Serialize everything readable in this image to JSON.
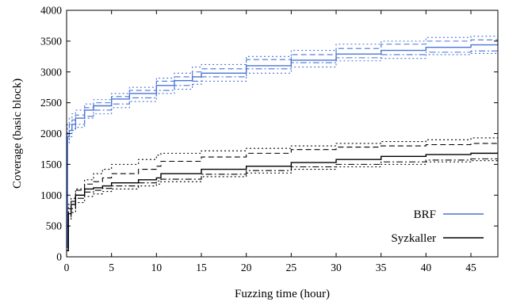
{
  "chart_data": {
    "type": "line",
    "title": "",
    "xlabel": "Fuzzing time (hour)",
    "ylabel": "Coverage (basic block)",
    "xlim": [
      0,
      48
    ],
    "ylim": [
      0,
      4000
    ],
    "xticks": [
      0,
      5,
      10,
      15,
      20,
      25,
      30,
      35,
      40,
      45
    ],
    "yticks": [
      0,
      500,
      1000,
      1500,
      2000,
      2500,
      3000,
      3500,
      4000
    ],
    "grid": false,
    "legend_position": "bottom-right",
    "series": [
      {
        "name": "BRF",
        "color": "#4a74d6",
        "style": "solid",
        "x": [
          0,
          0.1,
          0.3,
          0.6,
          1,
          2,
          3,
          5,
          7,
          10,
          12,
          14,
          15,
          20,
          25,
          30,
          35,
          40,
          45,
          48
        ],
        "y": [
          150,
          1950,
          2050,
          2150,
          2250,
          2380,
          2450,
          2560,
          2650,
          2780,
          2860,
          2920,
          2980,
          3100,
          3190,
          3290,
          3350,
          3400,
          3440,
          3460
        ]
      },
      {
        "name": "",
        "color": "#4a74d6",
        "style": "dashed",
        "x": [
          0,
          0.1,
          0.3,
          0.6,
          1,
          2,
          3,
          5,
          7,
          10,
          12,
          14,
          15,
          20,
          25,
          30,
          35,
          40,
          45,
          48
        ],
        "y": [
          150,
          2000,
          2150,
          2220,
          2300,
          2420,
          2500,
          2600,
          2700,
          2850,
          2920,
          3000,
          3050,
          3200,
          3280,
          3380,
          3450,
          3500,
          3520,
          3540
        ]
      },
      {
        "name": "",
        "color": "#4a74d6",
        "style": "dashdot",
        "x": [
          0,
          0.1,
          0.3,
          0.6,
          1,
          2,
          3,
          5,
          7,
          10,
          12,
          14,
          15,
          20,
          25,
          30,
          35,
          40,
          45,
          48
        ],
        "y": [
          150,
          1900,
          2000,
          2080,
          2150,
          2280,
          2380,
          2480,
          2580,
          2700,
          2780,
          2850,
          2920,
          3050,
          3150,
          3230,
          3280,
          3320,
          3340,
          3330
        ]
      },
      {
        "name": "",
        "color": "#4a74d6",
        "style": "dotted",
        "x": [
          0,
          0.1,
          0.3,
          0.6,
          1,
          2,
          3,
          5,
          7,
          10,
          12,
          14,
          15,
          20,
          25,
          30,
          35,
          40,
          45,
          48
        ],
        "y": [
          150,
          2150,
          2250,
          2320,
          2380,
          2480,
          2550,
          2650,
          2750,
          2900,
          2980,
          3080,
          3120,
          3250,
          3350,
          3450,
          3500,
          3560,
          3580,
          3590
        ]
      },
      {
        "name": "",
        "color": "#4a74d6",
        "style": "dotted",
        "x": [
          0,
          0.1,
          0.3,
          0.6,
          1,
          2,
          3,
          5,
          7,
          10,
          12,
          14,
          15,
          20,
          25,
          30,
          35,
          40,
          45,
          48
        ],
        "y": [
          150,
          1850,
          1950,
          2050,
          2100,
          2250,
          2320,
          2420,
          2520,
          2650,
          2720,
          2800,
          2850,
          2980,
          3080,
          3180,
          3220,
          3280,
          3300,
          3320
        ]
      },
      {
        "name": "Syzkaller",
        "color": "#000000",
        "style": "solid",
        "x": [
          0,
          0.2,
          0.5,
          1,
          2,
          3,
          4,
          5,
          8,
          10,
          10.5,
          15,
          20,
          25,
          30,
          35,
          40,
          45,
          48
        ],
        "y": [
          100,
          700,
          850,
          1000,
          1100,
          1120,
          1150,
          1200,
          1250,
          1280,
          1350,
          1420,
          1470,
          1530,
          1580,
          1630,
          1660,
          1680,
          1700
        ]
      },
      {
        "name": "",
        "color": "#000000",
        "style": "dashed",
        "x": [
          0,
          0.2,
          0.5,
          1,
          2,
          3,
          4,
          5,
          8,
          10,
          10.5,
          15,
          20,
          25,
          30,
          35,
          40,
          45,
          48
        ],
        "y": [
          100,
          780,
          900,
          1080,
          1180,
          1220,
          1280,
          1350,
          1420,
          1470,
          1550,
          1620,
          1680,
          1740,
          1780,
          1800,
          1820,
          1840,
          1860
        ]
      },
      {
        "name": "",
        "color": "#000000",
        "style": "dashdot",
        "x": [
          0,
          0.2,
          0.5,
          1,
          2,
          3,
          4,
          5,
          8,
          10,
          10.5,
          15,
          20,
          25,
          30,
          35,
          40,
          45,
          48
        ],
        "y": [
          100,
          650,
          780,
          950,
          1050,
          1080,
          1110,
          1150,
          1200,
          1230,
          1260,
          1340,
          1400,
          1460,
          1500,
          1540,
          1570,
          1590,
          1600
        ]
      },
      {
        "name": "",
        "color": "#000000",
        "style": "dotted",
        "x": [
          0,
          0.2,
          0.5,
          1,
          2,
          3,
          4,
          5,
          8,
          10,
          10.5,
          15,
          20,
          25,
          30,
          35,
          40,
          45,
          48
        ],
        "y": [
          100,
          850,
          950,
          1100,
          1250,
          1350,
          1420,
          1500,
          1580,
          1650,
          1680,
          1720,
          1760,
          1800,
          1840,
          1870,
          1900,
          1930,
          1940
        ]
      },
      {
        "name": "",
        "color": "#000000",
        "style": "dotted",
        "x": [
          0,
          0.2,
          0.5,
          1,
          2,
          3,
          4,
          5,
          8,
          10,
          10.5,
          15,
          20,
          25,
          30,
          35,
          40,
          45,
          48
        ],
        "y": [
          100,
          600,
          720,
          880,
          980,
          1020,
          1060,
          1100,
          1150,
          1180,
          1220,
          1300,
          1360,
          1420,
          1460,
          1500,
          1540,
          1560,
          1570
        ]
      }
    ]
  }
}
